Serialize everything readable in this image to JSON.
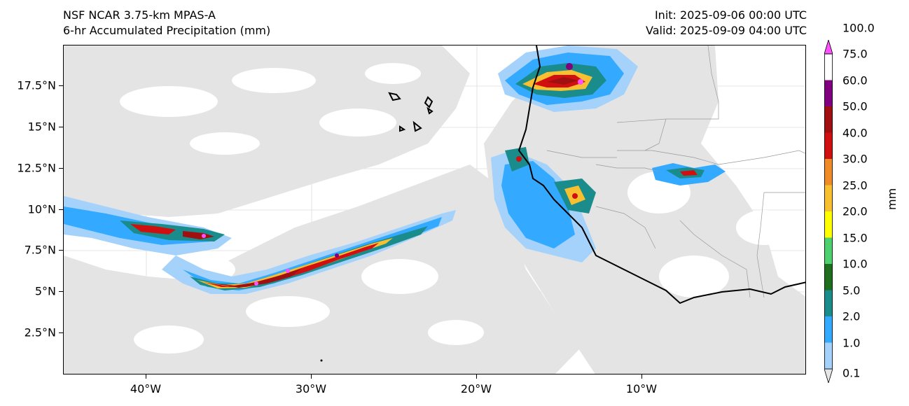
{
  "header": {
    "model": "NSF NCAR 3.75-km MPAS-A",
    "field": "6-hr Accumulated Precipitation (mm)",
    "init": "Init: 2025-09-06 00:00 UTC",
    "valid": "Valid: 2025-09-09 04:00 UTC"
  },
  "axes": {
    "y_ticks": [
      "17.5°N",
      "15°N",
      "12.5°N",
      "10°N",
      "7.5°N",
      "5°N",
      "2.5°N"
    ],
    "x_ticks": [
      "40°W",
      "30°W",
      "20°W",
      "10°W"
    ]
  },
  "colorbar": {
    "units": "mm",
    "levels": [
      "0.1",
      "1.0",
      "2.0",
      "5.0",
      "10.0",
      "15.0",
      "20.0",
      "25.0",
      "30.0",
      "40.0",
      "50.0",
      "60.0",
      "75.0",
      "100.0"
    ],
    "colors": [
      "#e6e6e6",
      "#a4d2fb",
      "#33aaff",
      "#1a8c8c",
      "#1e6e1e",
      "#4fd06e",
      "#ffff00",
      "#f8c030",
      "#f08c28",
      "#d01010",
      "#a01010",
      "#800080",
      "#ff50ff"
    ]
  }
}
